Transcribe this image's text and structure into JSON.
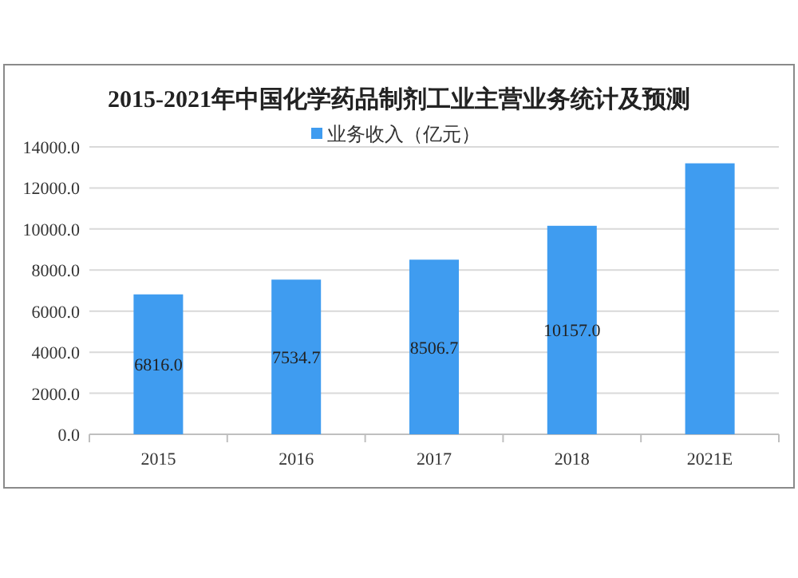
{
  "chart_data": {
    "type": "bar",
    "title": "2015-2021年中国化学药品制剂工业主营业务统计及预测",
    "categories": [
      "2015",
      "2016",
      "2017",
      "2018",
      "2021E"
    ],
    "series": [
      {
        "name": "业务收入（亿元）",
        "color": "#3f9cf0",
        "values": [
          6816.0,
          7534.7,
          8506.7,
          10157.0,
          13200
        ],
        "value_labels": [
          "6816.0",
          "7534.7",
          "8506.7",
          "10157.0",
          null
        ]
      }
    ],
    "ylim": [
      0,
      14000
    ],
    "yticks": [
      {
        "value": 0,
        "label": "0.0"
      },
      {
        "value": 2000,
        "label": "2000.0"
      },
      {
        "value": 4000,
        "label": "4000.0"
      },
      {
        "value": 6000,
        "label": "6000.0"
      },
      {
        "value": 8000,
        "label": "8000.0"
      },
      {
        "value": 10000,
        "label": "10000.0"
      },
      {
        "value": 12000,
        "label": "12000.0"
      },
      {
        "value": 14000,
        "label": "14000.0"
      }
    ],
    "grid": "y",
    "legend": "top"
  }
}
